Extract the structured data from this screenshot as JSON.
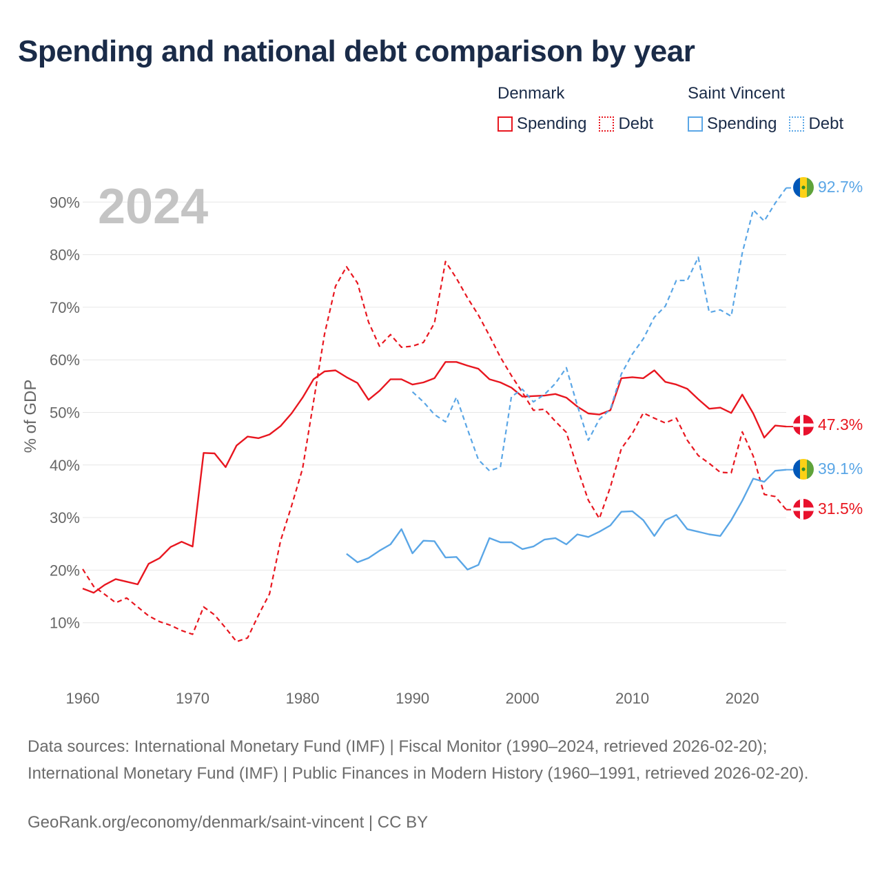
{
  "title": "Spending and national debt comparison by year",
  "legend": {
    "groups": [
      {
        "country": "Denmark",
        "items": [
          "Spending",
          "Debt"
        ],
        "color": "#e8161f"
      },
      {
        "country": "Saint Vincent",
        "items": [
          "Spending",
          "Debt"
        ],
        "color": "#5aa6e6"
      }
    ]
  },
  "year_label": "2024",
  "end_labels": {
    "svg_debt": "92.7%",
    "dk_spending": "47.3%",
    "svg_spending": "39.1%",
    "dk_debt": "31.5%"
  },
  "flags": {
    "denmark": "denmark-flag",
    "saint_vincent": "saint-vincent-flag"
  },
  "source_text": "Data sources: International Monetary Fund (IMF) | Fiscal Monitor (1990–2024, retrieved 2026-02-20); International Monetary Fund (IMF) | Public Finances in Modern History (1960–1991, retrieved 2026-02-20).",
  "credit_text": "GeoRank.org/economy/denmark/saint-vincent | CC BY",
  "colors": {
    "denmark": "#e8161f",
    "saint_vincent": "#5aa6e6",
    "title": "#1a2b48",
    "grid": "#e6e6e6",
    "axis_text": "#666666",
    "year": "#c4c4c4"
  },
  "chart_data": {
    "type": "line",
    "ylabel": "% of GDP",
    "xlim": [
      1960,
      2024
    ],
    "ylim": [
      0,
      95
    ],
    "xticks": [
      1960,
      1970,
      1980,
      1990,
      2000,
      2010,
      2020
    ],
    "xtick_labels": [
      "1960",
      "1970",
      "1980",
      "1990",
      "2000",
      "2010",
      "2020"
    ],
    "yticks": [
      10,
      20,
      30,
      40,
      50,
      60,
      70,
      80,
      90
    ],
    "ytick_labels": [
      "10%",
      "20%",
      "30%",
      "40%",
      "50%",
      "60%",
      "70%",
      "80%",
      "90%"
    ],
    "grid": true,
    "series": [
      {
        "name": "Denmark Spending",
        "country": "Denmark",
        "measure": "Spending",
        "style": "solid",
        "color": "#e8161f",
        "x": [
          1960,
          1961,
          1962,
          1963,
          1964,
          1965,
          1966,
          1967,
          1968,
          1969,
          1970,
          1971,
          1972,
          1973,
          1974,
          1975,
          1976,
          1977,
          1978,
          1979,
          1980,
          1981,
          1982,
          1983,
          1984,
          1985,
          1986,
          1987,
          1988,
          1989,
          1990,
          1991,
          1992,
          1993,
          1994,
          1995,
          1996,
          1997,
          1998,
          1999,
          2000,
          2001,
          2002,
          2003,
          2004,
          2005,
          2006,
          2007,
          2008,
          2009,
          2010,
          2011,
          2012,
          2013,
          2014,
          2015,
          2016,
          2017,
          2018,
          2019,
          2020,
          2021,
          2022,
          2023,
          2024
        ],
        "values": [
          16.5,
          15.7,
          17.2,
          18.3,
          17.8,
          17.3,
          21.2,
          22.3,
          24.4,
          25.4,
          24.5,
          42.3,
          42.2,
          39.6,
          43.7,
          45.4,
          45.1,
          45.8,
          47.4,
          49.8,
          52.8,
          56.3,
          57.8,
          58.0,
          56.7,
          55.6,
          52.4,
          54.1,
          56.3,
          56.3,
          55.3,
          55.7,
          56.5,
          59.6,
          59.6,
          58.9,
          58.3,
          56.3,
          55.7,
          54.7,
          53.0,
          53.1,
          53.2,
          53.5,
          52.8,
          51.1,
          49.8,
          49.6,
          50.4,
          56.5,
          56.7,
          56.5,
          58.0,
          55.8,
          55.3,
          54.5,
          52.5,
          50.7,
          50.9,
          49.9,
          53.4,
          49.8,
          45.2,
          47.5,
          47.3
        ]
      },
      {
        "name": "Denmark Debt",
        "country": "Denmark",
        "measure": "Debt",
        "style": "dashed",
        "color": "#e8161f",
        "x": [
          1960,
          1961,
          1962,
          1963,
          1964,
          1965,
          1966,
          1967,
          1968,
          1969,
          1970,
          1971,
          1972,
          1973,
          1974,
          1975,
          1976,
          1977,
          1978,
          1979,
          1980,
          1981,
          1982,
          1983,
          1984,
          1985,
          1986,
          1987,
          1988,
          1989,
          1990,
          1991,
          1992,
          1993,
          1994,
          1995,
          1996,
          1997,
          1998,
          1999,
          2000,
          2001,
          2002,
          2003,
          2004,
          2005,
          2006,
          2007,
          2008,
          2009,
          2010,
          2011,
          2012,
          2013,
          2014,
          2015,
          2016,
          2017,
          2018,
          2019,
          2020,
          2021,
          2022,
          2023,
          2024
        ],
        "values": [
          20.2,
          16.9,
          15.4,
          13.8,
          14.7,
          13.0,
          11.3,
          10.2,
          9.5,
          8.5,
          7.8,
          13.0,
          11.5,
          9.0,
          6.4,
          7.1,
          11.5,
          15.5,
          25.6,
          32.2,
          39.3,
          52.0,
          64.9,
          74.0,
          77.7,
          74.6,
          67.2,
          62.6,
          64.8,
          62.4,
          62.6,
          63.3,
          67.0,
          78.7,
          75.5,
          71.8,
          68.5,
          64.6,
          60.5,
          57.0,
          53.8,
          50.4,
          50.6,
          48.3,
          46.2,
          39.4,
          33.3,
          29.8,
          35.8,
          43.1,
          46.0,
          49.9,
          48.9,
          48.0,
          48.9,
          44.7,
          41.8,
          40.3,
          38.6,
          38.5,
          46.3,
          41.7,
          34.4,
          34.0,
          31.5
        ]
      },
      {
        "name": "Saint Vincent Spending",
        "country": "Saint Vincent",
        "measure": "Spending",
        "style": "solid",
        "color": "#5aa6e6",
        "x": [
          1984,
          1985,
          1986,
          1987,
          1988,
          1989,
          1990,
          1991,
          1992,
          1993,
          1994,
          1995,
          1996,
          1997,
          1998,
          1999,
          2000,
          2001,
          2002,
          2003,
          2004,
          2005,
          2006,
          2007,
          2008,
          2009,
          2010,
          2011,
          2012,
          2013,
          2014,
          2015,
          2016,
          2017,
          2018,
          2019,
          2020,
          2021,
          2022,
          2023,
          2024
        ],
        "values": [
          23.1,
          21.5,
          22.3,
          23.7,
          24.9,
          27.8,
          23.2,
          25.6,
          25.5,
          22.4,
          22.5,
          20.1,
          21.0,
          26.1,
          25.3,
          25.3,
          24.0,
          24.5,
          25.8,
          26.1,
          24.9,
          26.8,
          26.3,
          27.3,
          28.5,
          31.1,
          31.2,
          29.5,
          26.5,
          29.5,
          30.5,
          27.8,
          27.3,
          26.8,
          26.5,
          29.5,
          33.2,
          37.4,
          36.8,
          38.9,
          39.1
        ]
      },
      {
        "name": "Saint Vincent Debt",
        "country": "Saint Vincent",
        "measure": "Debt",
        "style": "dashed",
        "color": "#5aa6e6",
        "x": [
          1990,
          1991,
          1992,
          1993,
          1994,
          1995,
          1996,
          1997,
          1998,
          1999,
          2000,
          2001,
          2002,
          2003,
          2004,
          2005,
          2006,
          2007,
          2008,
          2009,
          2010,
          2011,
          2012,
          2013,
          2014,
          2015,
          2016,
          2017,
          2018,
          2019,
          2020,
          2021,
          2022,
          2023,
          2024
        ],
        "values": [
          53.9,
          52.0,
          49.6,
          48.2,
          52.9,
          46.8,
          41.0,
          38.9,
          39.6,
          53.0,
          54.4,
          52.0,
          53.4,
          55.5,
          58.5,
          51.3,
          44.7,
          48.7,
          50.6,
          57.3,
          61.1,
          64.0,
          68.1,
          70.2,
          75.1,
          75.1,
          79.5,
          69.0,
          69.5,
          68.3,
          80.3,
          88.5,
          86.4,
          89.8,
          92.7
        ]
      }
    ]
  }
}
